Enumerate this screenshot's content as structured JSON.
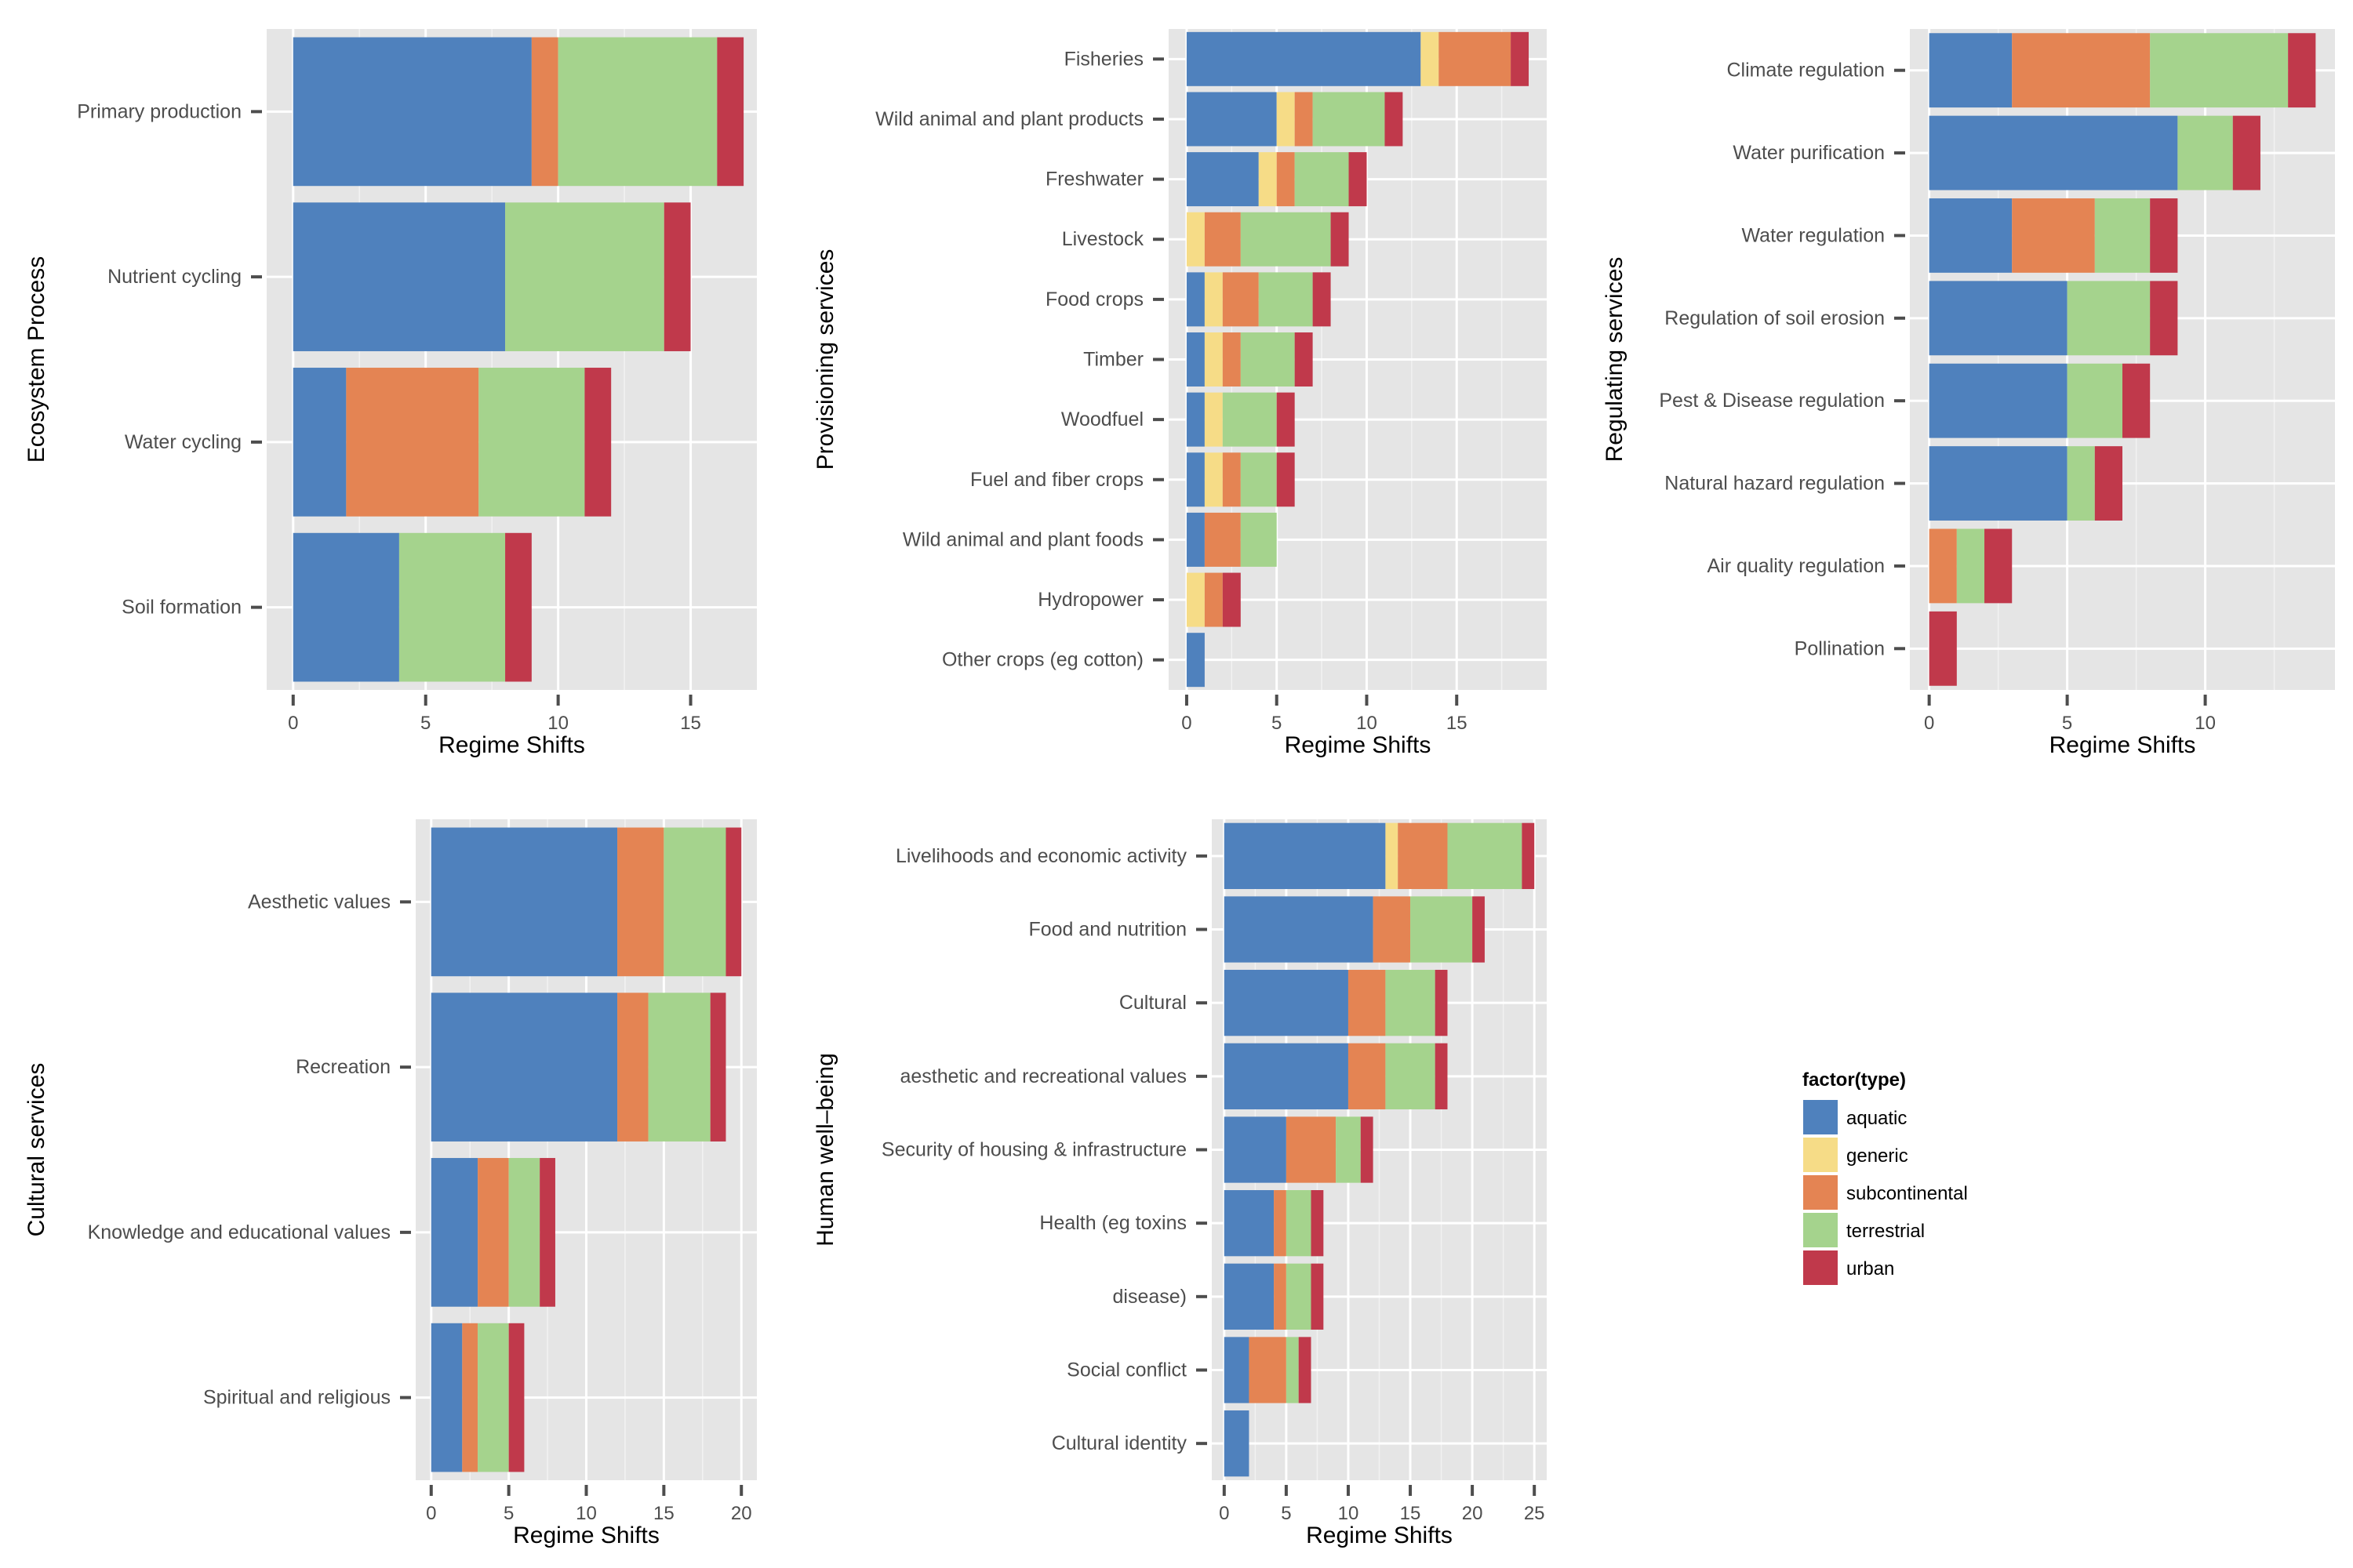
{
  "legend": {
    "title": "factor(type)",
    "items": [
      {
        "label": "aquatic",
        "color": "#4f81bd"
      },
      {
        "label": "generic",
        "color": "#f6dc87"
      },
      {
        "label": "subcontinental",
        "color": "#e48453"
      },
      {
        "label": "terrestrial",
        "color": "#a5d38d"
      },
      {
        "label": "urban",
        "color": "#c0394b"
      }
    ]
  },
  "chart_data": [
    {
      "type": "bar",
      "orientation": "horizontal",
      "stacked": true,
      "title": "",
      "xlabel": "Regime Shifts",
      "ylabel": "Ecosystem Process",
      "xlim": [
        -1,
        17.5
      ],
      "xticks": [
        0,
        5,
        10,
        15
      ],
      "grid": true,
      "categories": [
        "Primary production",
        "Nutrient cycling",
        "Water cycling",
        "Soil formation"
      ],
      "series": [
        {
          "name": "aquatic",
          "values": [
            9,
            8,
            2,
            4
          ]
        },
        {
          "name": "generic",
          "values": [
            0,
            0,
            0,
            0
          ]
        },
        {
          "name": "subcontinental",
          "values": [
            1,
            0,
            5,
            0
          ]
        },
        {
          "name": "terrestrial",
          "values": [
            6,
            6,
            4,
            4
          ]
        },
        {
          "name": "urban",
          "values": [
            1,
            1,
            1,
            1
          ]
        }
      ]
    },
    {
      "type": "bar",
      "orientation": "horizontal",
      "stacked": true,
      "title": "",
      "xlabel": "Regime Shifts",
      "ylabel": "Provisioning services",
      "xlim": [
        -1,
        20
      ],
      "xticks": [
        0,
        5,
        10,
        15
      ],
      "grid": true,
      "categories": [
        "Fisheries",
        "Wild animal and plant products",
        "Freshwater",
        "Livestock",
        "Food crops",
        "Timber",
        "Woodfuel",
        "Fuel and fiber crops",
        "Wild animal and plant foods",
        "Hydropower",
        "Other crops (eg cotton)"
      ],
      "series": [
        {
          "name": "aquatic",
          "values": [
            13,
            5,
            4,
            0,
            1,
            1,
            1,
            1,
            1,
            0,
            1
          ]
        },
        {
          "name": "generic",
          "values": [
            1,
            1,
            1,
            1,
            1,
            1,
            1,
            1,
            0,
            1,
            0
          ]
        },
        {
          "name": "subcontinental",
          "values": [
            4,
            1,
            1,
            2,
            2,
            1,
            0,
            1,
            2,
            1,
            0
          ]
        },
        {
          "name": "terrestrial",
          "values": [
            0,
            4,
            3,
            5,
            3,
            3,
            3,
            2,
            2,
            0,
            0
          ]
        },
        {
          "name": "urban",
          "values": [
            1,
            1,
            1,
            1,
            1,
            1,
            1,
            1,
            0,
            1,
            0
          ]
        }
      ]
    },
    {
      "type": "bar",
      "orientation": "horizontal",
      "stacked": true,
      "title": "",
      "xlabel": "Regime Shifts",
      "ylabel": "Regulating services",
      "xlim": [
        -0.7,
        14.7
      ],
      "xticks": [
        0,
        5,
        10
      ],
      "grid": true,
      "categories": [
        "Climate regulation",
        "Water purification",
        "Water regulation",
        "Regulation of soil erosion",
        "Pest & Disease regulation",
        "Natural hazard regulation",
        "Air quality regulation",
        "Pollination"
      ],
      "series": [
        {
          "name": "aquatic",
          "values": [
            3,
            9,
            3,
            5,
            5,
            5,
            0,
            0
          ]
        },
        {
          "name": "generic",
          "values": [
            0,
            0,
            0,
            0,
            0,
            0,
            0,
            0
          ]
        },
        {
          "name": "subcontinental",
          "values": [
            5,
            0,
            3,
            0,
            0,
            0,
            1,
            0
          ]
        },
        {
          "name": "terrestrial",
          "values": [
            5,
            2,
            2,
            3,
            2,
            1,
            1,
            0
          ]
        },
        {
          "name": "urban",
          "values": [
            1,
            1,
            1,
            1,
            1,
            1,
            1,
            1
          ]
        }
      ]
    },
    {
      "type": "bar",
      "orientation": "horizontal",
      "stacked": true,
      "title": "",
      "xlabel": "Regime Shifts",
      "ylabel": "Cultural services",
      "xlim": [
        -1,
        21
      ],
      "xticks": [
        0,
        5,
        10,
        15,
        20
      ],
      "grid": true,
      "categories": [
        "Aesthetic values",
        "Recreation",
        "Knowledge and educational values",
        "Spiritual and religious"
      ],
      "series": [
        {
          "name": "aquatic",
          "values": [
            12,
            12,
            3,
            2
          ]
        },
        {
          "name": "generic",
          "values": [
            0,
            0,
            0,
            0
          ]
        },
        {
          "name": "subcontinental",
          "values": [
            3,
            2,
            2,
            1
          ]
        },
        {
          "name": "terrestrial",
          "values": [
            4,
            4,
            2,
            2
          ]
        },
        {
          "name": "urban",
          "values": [
            1,
            1,
            1,
            1
          ]
        }
      ]
    },
    {
      "type": "bar",
      "orientation": "horizontal",
      "stacked": true,
      "title": "",
      "xlabel": "Regime Shifts",
      "ylabel": "Human well–being",
      "xlim": [
        -1,
        26
      ],
      "xticks": [
        0,
        5,
        10,
        15,
        20,
        25
      ],
      "grid": true,
      "categories": [
        "Livelihoods and economic activity",
        "Food and nutrition",
        "Cultural",
        "aesthetic and recreational values",
        "Security of housing & infrastructure",
        "Health (eg toxins",
        "disease)",
        "Social conflict",
        "Cultural identity"
      ],
      "series": [
        {
          "name": "aquatic",
          "values": [
            13,
            12,
            10,
            10,
            5,
            4,
            4,
            2,
            2
          ]
        },
        {
          "name": "generic",
          "values": [
            1,
            0,
            0,
            0,
            0,
            0,
            0,
            0,
            0
          ]
        },
        {
          "name": "subcontinental",
          "values": [
            4,
            3,
            3,
            3,
            4,
            1,
            1,
            3,
            0
          ]
        },
        {
          "name": "terrestrial",
          "values": [
            6,
            5,
            4,
            4,
            2,
            2,
            2,
            1,
            0
          ]
        },
        {
          "name": "urban",
          "values": [
            1,
            1,
            1,
            1,
            1,
            1,
            1,
            1,
            0
          ]
        }
      ]
    }
  ]
}
